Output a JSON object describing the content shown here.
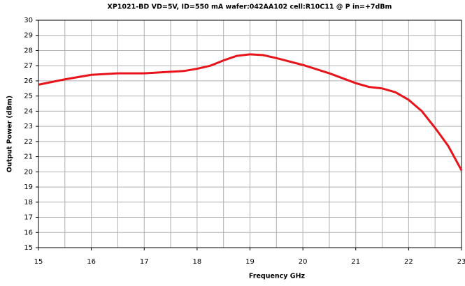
{
  "chart_data": {
    "type": "line",
    "title": "XP1021-BD VD=5V, ID=550 mA wafer:042AA102 cell:R10C11 @  P in=+7dBm",
    "xlabel": "Frequency GHz",
    "ylabel": "Output Power (dBm)",
    "x": [
      15,
      15.5,
      16,
      16.5,
      17,
      17.5,
      17.75,
      18,
      18.25,
      18.5,
      18.75,
      19,
      19.25,
      19.5,
      20,
      20.5,
      21,
      21.25,
      21.5,
      21.75,
      22,
      22.25,
      22.5,
      22.75,
      23
    ],
    "values": [
      25.75,
      26.1,
      26.4,
      26.5,
      26.5,
      26.6,
      26.65,
      26.8,
      27.0,
      27.35,
      27.65,
      27.75,
      27.7,
      27.5,
      27.05,
      26.5,
      25.85,
      25.6,
      25.5,
      25.25,
      24.75,
      24.0,
      22.9,
      21.7,
      20.1
    ],
    "color": "#e8141b",
    "xlim": [
      15,
      23
    ],
    "xticks": [
      15,
      16,
      17,
      18,
      19,
      20,
      21,
      22,
      23
    ],
    "ylim": [
      15,
      30
    ],
    "yticks": [
      15,
      16,
      17,
      18,
      19,
      20,
      21,
      22,
      23,
      24,
      25,
      26,
      27,
      28,
      29,
      30
    ],
    "grid": true
  }
}
